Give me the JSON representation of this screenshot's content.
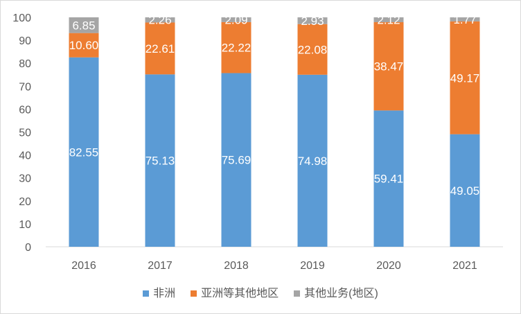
{
  "chart_data": {
    "type": "bar",
    "stacked": true,
    "title": "",
    "xlabel": "",
    "ylabel": "",
    "ylim": [
      0,
      100
    ],
    "yticks": [
      0,
      10,
      20,
      30,
      40,
      50,
      60,
      70,
      80,
      90,
      100
    ],
    "categories": [
      "2016",
      "2017",
      "2018",
      "2019",
      "2020",
      "2021"
    ],
    "series": [
      {
        "name": "非洲",
        "color": "#5b9bd5",
        "values": [
          82.55,
          75.13,
          75.69,
          74.98,
          59.41,
          49.05
        ],
        "labels": [
          "82.55",
          "75.13",
          "75.69",
          "74.98",
          "59.41",
          "49.05"
        ]
      },
      {
        "name": "亚洲等其他地区",
        "color": "#ed7d31",
        "values": [
          10.6,
          22.61,
          22.22,
          22.08,
          38.47,
          49.17
        ],
        "labels": [
          "10.60",
          "22.61",
          "22.22",
          "22.08",
          "38.47",
          "49.17"
        ]
      },
      {
        "name": "其他业务(地区)",
        "color": "#a5a5a5",
        "values": [
          6.85,
          2.26,
          2.09,
          2.93,
          2.12,
          1.77
        ],
        "labels": [
          "6.85",
          "2.26",
          "2.09",
          "2.93",
          "2.12",
          "1.77"
        ]
      }
    ],
    "legend_position": "bottom",
    "grid": false
  }
}
